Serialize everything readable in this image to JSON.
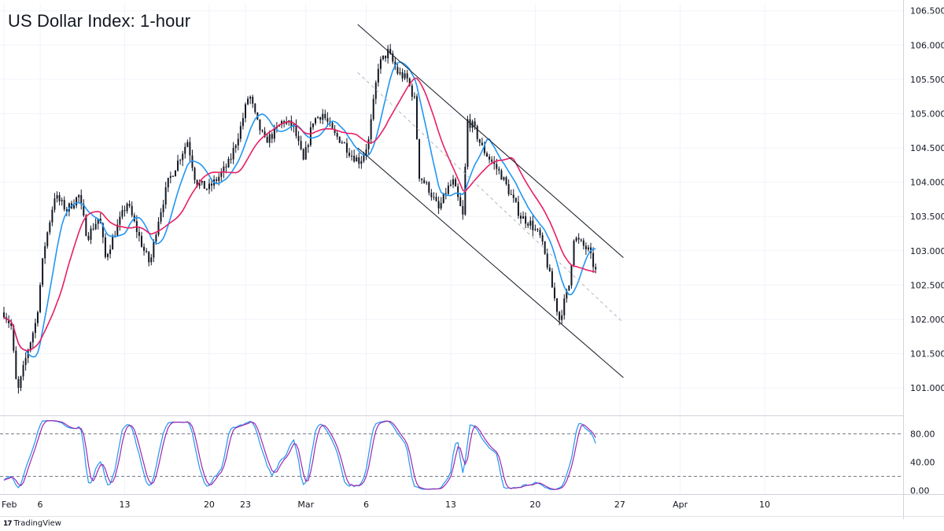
{
  "chart_data": {
    "type": "candlestick",
    "title": "US Dollar Index: 1-hour",
    "price_axis": {
      "range": [
        100.6,
        106.6
      ],
      "ticks": [
        "106.500",
        "106.000",
        "105.500",
        "105.000",
        "104.500",
        "104.000",
        "103.500",
        "103.000",
        "102.500",
        "102.000",
        "101.500",
        "101.000"
      ]
    },
    "time_axis": {
      "ticks": [
        {
          "label": "Feb",
          "day": 0
        },
        {
          "label": "6",
          "day": 3
        },
        {
          "label": "13",
          "day": 10
        },
        {
          "label": "20",
          "day": 17
        },
        {
          "label": "23",
          "day": 20
        },
        {
          "label": "Mar",
          "day": 25
        },
        {
          "label": "6",
          "day": 30
        },
        {
          "label": "13",
          "day": 37
        },
        {
          "label": "20",
          "day": 44
        },
        {
          "label": "27",
          "day": 51
        },
        {
          "label": "Apr",
          "day": 56
        },
        {
          "label": "10",
          "day": 63
        }
      ]
    },
    "price_path": [
      [
        0,
        102.1
      ],
      [
        0.6,
        101.9
      ],
      [
        1.1,
        100.9
      ],
      [
        1.9,
        101.5
      ],
      [
        2.7,
        102.0
      ],
      [
        3.3,
        103.0
      ],
      [
        4.2,
        103.8
      ],
      [
        5.2,
        103.6
      ],
      [
        6.2,
        103.8
      ],
      [
        6.9,
        103.2
      ],
      [
        7.9,
        103.5
      ],
      [
        8.4,
        102.9
      ],
      [
        9.5,
        103.4
      ],
      [
        10.2,
        103.7
      ],
      [
        10.8,
        103.4
      ],
      [
        11.6,
        103.0
      ],
      [
        12.1,
        102.8
      ],
      [
        12.7,
        103.4
      ],
      [
        13.6,
        104.0
      ],
      [
        14.4,
        104.3
      ],
      [
        15.2,
        104.6
      ],
      [
        15.9,
        104.0
      ],
      [
        16.9,
        103.9
      ],
      [
        17.9,
        104.1
      ],
      [
        18.7,
        104.3
      ],
      [
        19.6,
        104.8
      ],
      [
        20.3,
        105.3
      ],
      [
        20.9,
        104.9
      ],
      [
        21.6,
        104.6
      ],
      [
        22.3,
        104.7
      ],
      [
        23.1,
        104.9
      ],
      [
        24.0,
        104.8
      ],
      [
        24.8,
        104.3
      ],
      [
        25.6,
        104.9
      ],
      [
        26.4,
        105.0
      ],
      [
        27.3,
        104.7
      ],
      [
        28.0,
        104.6
      ],
      [
        28.8,
        104.4
      ],
      [
        29.5,
        104.3
      ],
      [
        30.2,
        104.6
      ],
      [
        31.0,
        105.7
      ],
      [
        31.8,
        105.9
      ],
      [
        32.6,
        105.6
      ],
      [
        33.4,
        105.5
      ],
      [
        34.0,
        105.2
      ],
      [
        34.4,
        104.1
      ],
      [
        35.2,
        103.9
      ],
      [
        36.0,
        103.6
      ],
      [
        36.7,
        103.9
      ],
      [
        37.2,
        104.0
      ],
      [
        38.0,
        103.5
      ],
      [
        38.4,
        104.9
      ],
      [
        38.9,
        104.8
      ],
      [
        39.6,
        104.5
      ],
      [
        40.4,
        104.3
      ],
      [
        41.2,
        104.1
      ],
      [
        42.0,
        103.8
      ],
      [
        42.8,
        103.5
      ],
      [
        43.6,
        103.4
      ],
      [
        44.4,
        103.2
      ],
      [
        45.0,
        102.8
      ],
      [
        45.6,
        102.3
      ],
      [
        46.0,
        102.0
      ],
      [
        46.8,
        102.5
      ],
      [
        47.2,
        103.2
      ],
      [
        47.8,
        103.1
      ],
      [
        48.4,
        103.0
      ],
      [
        49.0,
        102.7
      ]
    ],
    "overlays": [
      {
        "color": "#2196f3",
        "period": 50
      },
      {
        "color": "#e91e63",
        "period": 100
      }
    ],
    "channel": {
      "upper": [
        [
          29.3,
          106.3
        ],
        [
          51.3,
          102.9
        ]
      ],
      "middle": [
        [
          29.3,
          105.6
        ],
        [
          51.3,
          101.95
        ]
      ],
      "lower": [
        [
          29.3,
          104.5
        ],
        [
          51.3,
          101.15
        ]
      ]
    },
    "oscillator": {
      "range": [
        -5,
        105
      ],
      "levels": [
        80,
        20
      ],
      "ticks": [
        "80.00",
        "40.00",
        "0.00"
      ],
      "colors": {
        "k": "#2196f3",
        "d": "#9c27b0"
      }
    },
    "colors": {
      "candle": "#131722",
      "grid": "#f0f3fa",
      "text": "#131722"
    }
  },
  "branding": {
    "name": "TradingView",
    "icon": "tradingview-logo-icon"
  }
}
